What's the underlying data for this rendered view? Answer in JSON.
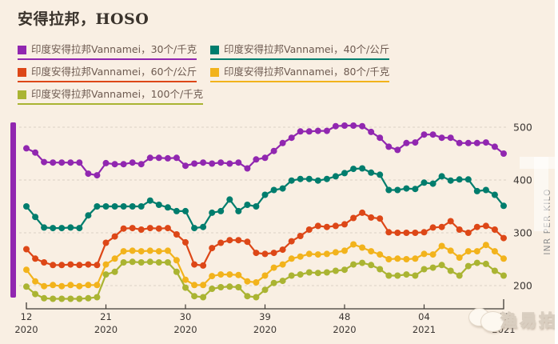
{
  "title": "安得拉邦，HOSO",
  "colors": {
    "background": "#f9efe3",
    "title_text": "#3a332c",
    "legend_text": "#6d5a50",
    "grid_line": "#dbd0c4",
    "axis_line": "#3f3a36",
    "tick_label": "#3b3633",
    "y_axis_label": "#8d8d8d",
    "accent_bar": "#9127b0"
  },
  "legend": {
    "items": [
      {
        "key": "vannamei-30",
        "label": "印度安得拉邦Vannamei，30个/千克",
        "color": "#9127b0"
      },
      {
        "key": "vannamei-40",
        "label": "印度安得拉邦Vannamei，40个/公斤",
        "color": "#007d6d"
      },
      {
        "key": "vannamei-60",
        "label": "印度安得拉邦Vannamei，60个/公斤",
        "color": "#dd4717"
      },
      {
        "key": "vannamei-80",
        "label": "印度安得拉邦Vannamei，80个/千克",
        "color": "#f2b31c"
      },
      {
        "key": "vannamei-100",
        "label": "印度安得拉邦Vannamei，100个/千克",
        "color": "#aab432"
      }
    ]
  },
  "watermark": {
    "text": "渔易拍"
  },
  "chart_data": {
    "type": "line",
    "title": "安得拉邦，HOSO",
    "xlabel": "",
    "ylabel": "INR PER KILO",
    "ylim": [
      185,
      515
    ],
    "y_ticks": [
      500,
      400,
      300,
      200
    ],
    "grid": "dashed-horizontal",
    "legend_position": "top",
    "categories": [
      "12/2020",
      "13/2020",
      "14/2020",
      "15/2020",
      "16/2020",
      "17/2020",
      "18/2020",
      "19/2020",
      "20/2020",
      "21/2020",
      "22/2020",
      "23/2020",
      "24/2020",
      "25/2020",
      "26/2020",
      "27/2020",
      "28/2020",
      "29/2020",
      "30/2020",
      "31/2020",
      "32/2020",
      "33/2020",
      "34/2020",
      "35/2020",
      "36/2020",
      "37/2020",
      "38/2020",
      "39/2020",
      "40/2020",
      "41/2020",
      "42/2020",
      "43/2020",
      "44/2020",
      "45/2020",
      "46/2020",
      "47/2020",
      "48/2020",
      "49/2020",
      "50/2020",
      "51/2020",
      "52/2020",
      "53/2020",
      "01/2021",
      "02/2021",
      "03/2021",
      "04/2021",
      "05/2021",
      "06/2021",
      "07/2021",
      "08/2021",
      "09/2021",
      "10/2021",
      "11/2021",
      "12/2021",
      "13/2021"
    ],
    "x_ticks": [
      {
        "index": 0,
        "week": "12",
        "year": "2020"
      },
      {
        "index": 9,
        "week": "21",
        "year": "2020"
      },
      {
        "index": 18,
        "week": "30",
        "year": "2020"
      },
      {
        "index": 27,
        "week": "39",
        "year": "2020"
      },
      {
        "index": 36,
        "week": "48",
        "year": "2020"
      },
      {
        "index": 45,
        "week": "04",
        "year": "2021"
      },
      {
        "index": 54,
        "week": "13",
        "year": "2021"
      }
    ],
    "series": [
      {
        "name": "印度安得拉邦Vannamei，30个/千克",
        "key": "vannamei-30",
        "color": "#9127b0",
        "values": [
          460,
          452,
          434,
          433,
          433,
          433,
          433,
          412,
          409,
          432,
          430,
          430,
          433,
          430,
          442,
          442,
          441,
          442,
          427,
          431,
          433,
          431,
          433,
          431,
          433,
          422,
          439,
          442,
          455,
          470,
          480,
          492,
          492,
          493,
          493,
          502,
          503,
          503,
          502,
          491,
          480,
          463,
          457,
          470,
          471,
          486,
          486,
          480,
          480,
          470,
          470,
          470,
          471,
          463,
          450
        ]
      },
      {
        "name": "印度安得拉邦Vannamei，40个/公斤",
        "key": "vannamei-40",
        "color": "#007d6d",
        "values": [
          350,
          330,
          310,
          309,
          309,
          310,
          309,
          333,
          350,
          350,
          350,
          350,
          350,
          350,
          361,
          353,
          348,
          341,
          341,
          309,
          311,
          338,
          341,
          363,
          341,
          353,
          350,
          372,
          381,
          384,
          399,
          402,
          402,
          399,
          402,
          407,
          413,
          421,
          422,
          414,
          410,
          381,
          381,
          384,
          383,
          395,
          393,
          407,
          399,
          401,
          401,
          379,
          381,
          372,
          351
        ]
      },
      {
        "name": "印度安得拉邦Vannamei，60个/公斤",
        "key": "vannamei-60",
        "color": "#dd4717",
        "values": [
          269,
          251,
          244,
          239,
          239,
          240,
          239,
          240,
          239,
          281,
          293,
          308,
          309,
          306,
          309,
          308,
          309,
          297,
          282,
          240,
          238,
          271,
          281,
          286,
          286,
          283,
          262,
          260,
          262,
          268,
          284,
          294,
          306,
          313,
          311,
          313,
          316,
          328,
          338,
          329,
          327,
          301,
          300,
          300,
          300,
          301,
          310,
          311,
          322,
          306,
          300,
          311,
          313,
          306,
          290
        ]
      },
      {
        "name": "印度安得拉邦Vannamei，80个/千克",
        "key": "vannamei-80",
        "color": "#f2b31c",
        "values": [
          230,
          208,
          199,
          201,
          199,
          201,
          199,
          201,
          201,
          240,
          251,
          265,
          266,
          265,
          266,
          265,
          266,
          248,
          211,
          201,
          201,
          218,
          221,
          221,
          220,
          208,
          206,
          219,
          234,
          240,
          251,
          255,
          260,
          259,
          260,
          263,
          266,
          278,
          272,
          265,
          259,
          250,
          251,
          250,
          251,
          260,
          259,
          275,
          266,
          253,
          265,
          265,
          277,
          265,
          251
        ]
      },
      {
        "name": "印度安得拉邦Vannamei，100个/千克",
        "key": "vannamei-100",
        "color": "#aab432",
        "values": [
          198,
          184,
          176,
          175,
          175,
          175,
          175,
          176,
          178,
          221,
          226,
          244,
          245,
          244,
          245,
          244,
          244,
          226,
          196,
          180,
          178,
          194,
          197,
          198,
          197,
          180,
          178,
          192,
          205,
          209,
          219,
          221,
          225,
          224,
          225,
          228,
          230,
          240,
          243,
          239,
          231,
          219,
          219,
          221,
          219,
          231,
          234,
          239,
          228,
          219,
          237,
          243,
          241,
          228,
          219
        ]
      }
    ]
  }
}
